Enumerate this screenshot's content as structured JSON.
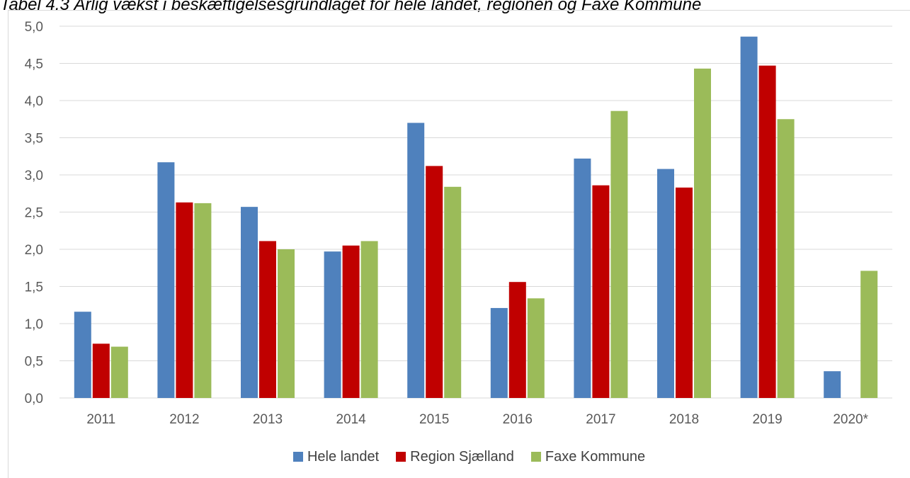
{
  "chart_data": {
    "type": "bar",
    "title": "Tabel 4.3 Årlig vækst i beskæftigelsesgrundlaget for hele landet, regionen og Faxe Kommune",
    "xlabel": "",
    "ylabel": "",
    "categories": [
      "2011",
      "2012",
      "2013",
      "2014",
      "2015",
      "2016",
      "2017",
      "2018",
      "2019",
      "2020*"
    ],
    "ylim": [
      0,
      5
    ],
    "yticks": [
      "0,0",
      "0,5",
      "1,0",
      "1,5",
      "2,0",
      "2,5",
      "3,0",
      "3,5",
      "4,0",
      "4,5",
      "5,0"
    ],
    "grid": true,
    "legend_position": "bottom",
    "series": [
      {
        "name": "Hele landet",
        "color": "#4f81bd",
        "values": [
          1.16,
          3.17,
          2.57,
          1.97,
          3.7,
          1.21,
          3.22,
          3.08,
          4.86,
          0.36
        ]
      },
      {
        "name": "Region Sjælland",
        "color": "#c00000",
        "values": [
          0.73,
          2.63,
          2.11,
          2.05,
          3.12,
          1.56,
          2.86,
          2.83,
          4.47,
          null
        ]
      },
      {
        "name": "Faxe Kommune",
        "color": "#9bbb59",
        "values": [
          0.69,
          2.62,
          2.0,
          2.11,
          2.84,
          1.34,
          3.86,
          4.43,
          3.75,
          1.71
        ]
      }
    ]
  }
}
